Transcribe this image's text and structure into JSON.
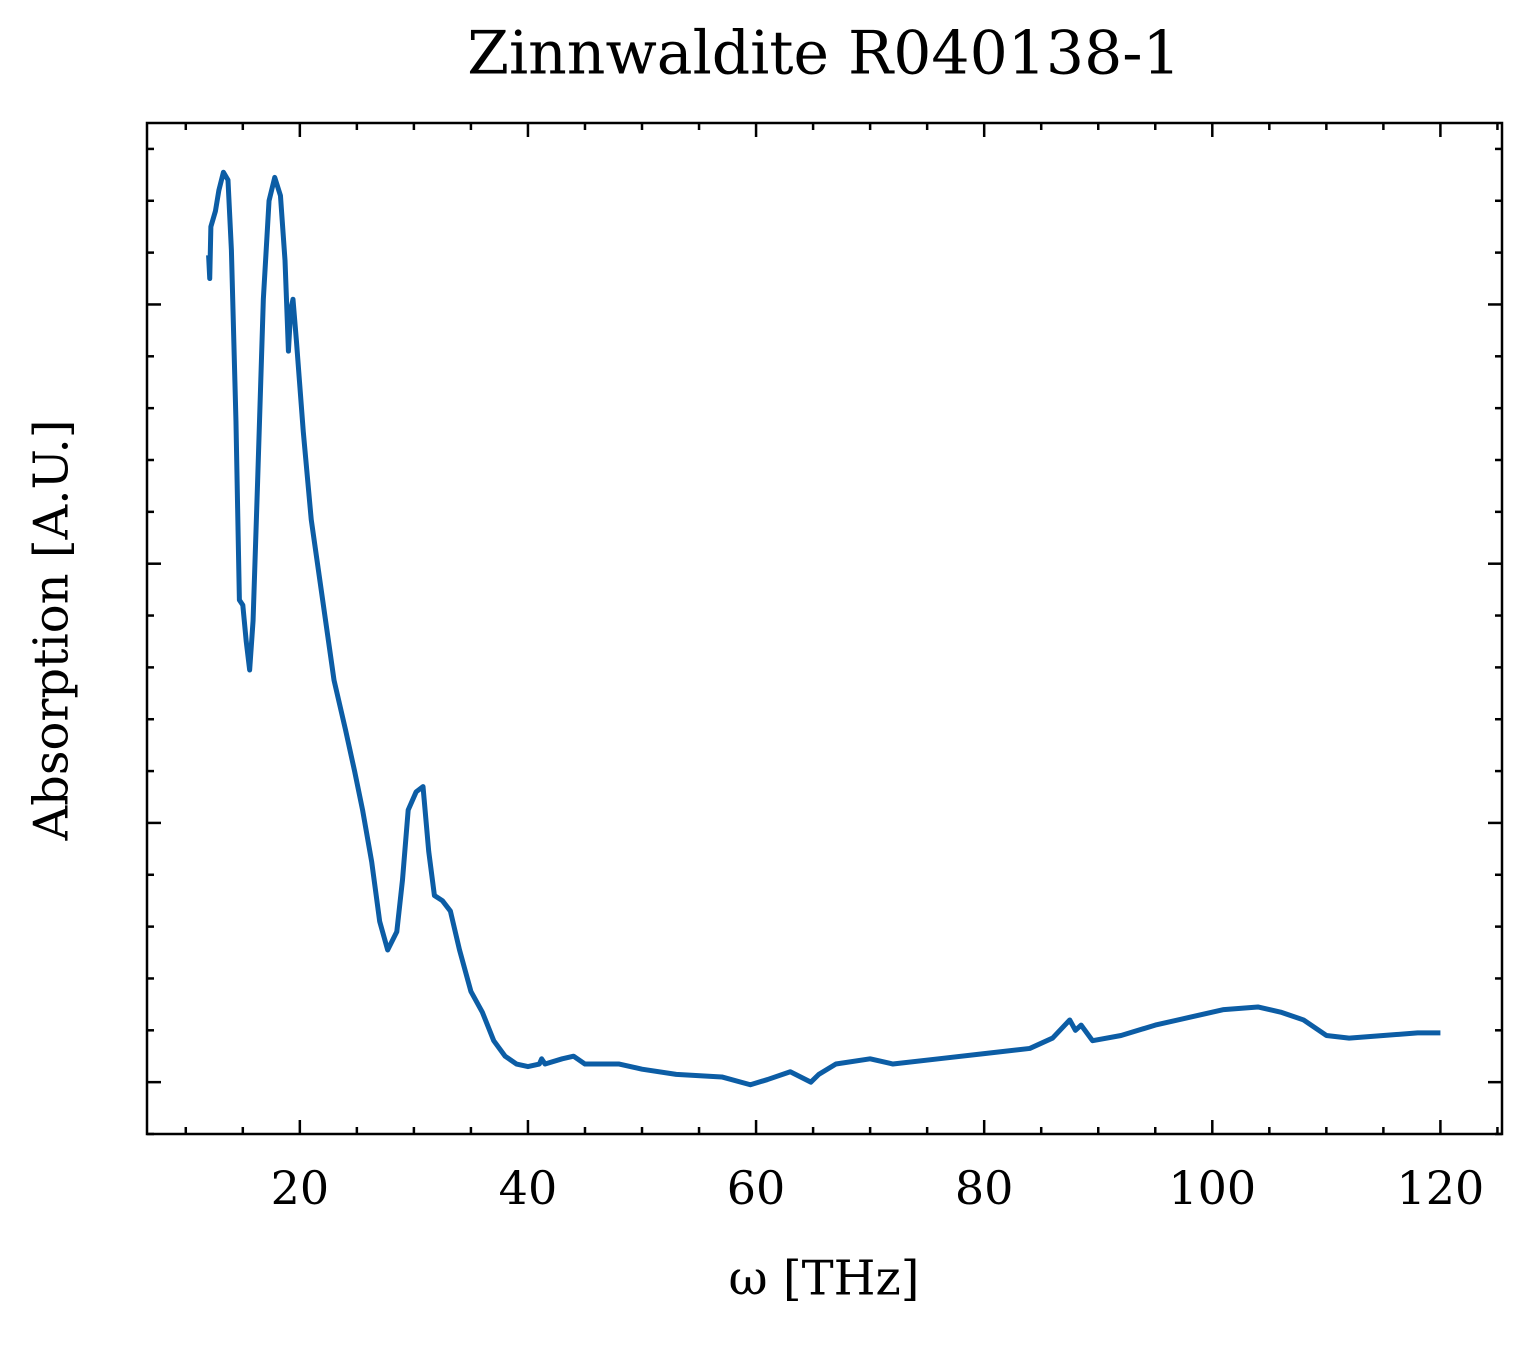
{
  "chart_data": {
    "type": "line",
    "title": "Zinnwaldite R040138-1",
    "xlabel": "ω [THz]",
    "ylabel": "Absorption [A.U.]",
    "xlim": [
      6.6,
      125.4
    ],
    "xticks": [
      20,
      40,
      60,
      80,
      100,
      120
    ],
    "xminor": 5,
    "ylim": [
      -0.2,
      3.7
    ],
    "yticks": [
      0,
      1,
      2,
      3
    ],
    "yminor": 0.2,
    "ytick_labels": false,
    "grid": false,
    "series": [
      {
        "name": "Zinnwaldite R040138-1",
        "color": "#0c5da5",
        "x": [
          12.0,
          12.1,
          12.2,
          12.6,
          12.9,
          13.3,
          13.7,
          14.0,
          14.4,
          14.7,
          15.0,
          15.3,
          15.6,
          15.9,
          16.3,
          16.8,
          17.3,
          17.8,
          18.3,
          18.7,
          19.0,
          19.2,
          19.4,
          19.7,
          20.3,
          21,
          22,
          23,
          24,
          24.8,
          25.5,
          26.3,
          27,
          27.7,
          28.5,
          29,
          29.5,
          30.2,
          30.8,
          31.3,
          31.8,
          32.5,
          33.2,
          34,
          35,
          36,
          37,
          38,
          39,
          40,
          41,
          41.2,
          41.5,
          43,
          44,
          45,
          48,
          50,
          53,
          57,
          59.5,
          61,
          63,
          64.8,
          65.5,
          67,
          70,
          72,
          76,
          80,
          84,
          86,
          87.5,
          88,
          88.5,
          89.5,
          92,
          95,
          98,
          101,
          104,
          106,
          108,
          110,
          112,
          115,
          118,
          120
        ],
        "values": [
          3.19,
          3.1,
          3.3,
          3.36,
          3.44,
          3.51,
          3.48,
          3.21,
          2.55,
          1.86,
          1.84,
          1.7,
          1.59,
          1.78,
          2.32,
          3.02,
          3.4,
          3.49,
          3.42,
          3.17,
          2.82,
          2.98,
          3.02,
          2.86,
          2.51,
          2.17,
          1.86,
          1.55,
          1.36,
          1.2,
          1.05,
          0.85,
          0.62,
          0.51,
          0.58,
          0.78,
          1.05,
          1.12,
          1.14,
          0.89,
          0.72,
          0.7,
          0.66,
          0.51,
          0.35,
          0.27,
          0.16,
          0.1,
          0.07,
          0.06,
          0.07,
          0.09,
          0.07,
          0.09,
          0.1,
          0.07,
          0.07,
          0.05,
          0.03,
          0.02,
          -0.01,
          0.01,
          0.04,
          0.0,
          0.03,
          0.07,
          0.09,
          0.07,
          0.09,
          0.11,
          0.13,
          0.17,
          0.24,
          0.2,
          0.22,
          0.16,
          0.18,
          0.22,
          0.25,
          0.28,
          0.29,
          0.27,
          0.24,
          0.18,
          0.17,
          0.18,
          0.19,
          0.19
        ]
      }
    ]
  }
}
